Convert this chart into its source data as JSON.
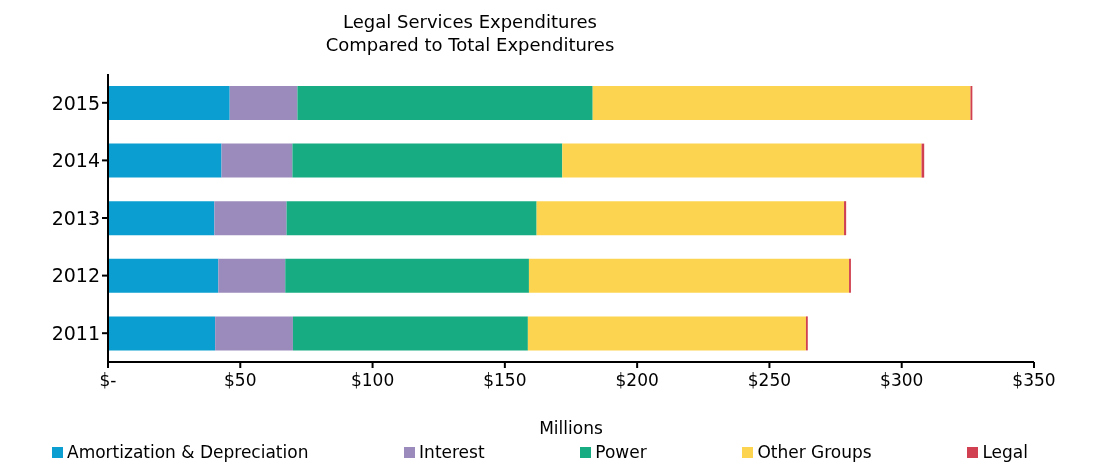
{
  "chart_data": {
    "type": "bar",
    "orientation": "horizontal",
    "stacked": true,
    "title": "Legal Services Expenditures\nCompared to Total Expenditures",
    "xlabel": "Millions",
    "categories": [
      "2015",
      "2014",
      "2013",
      "2012",
      "2011"
    ],
    "series": [
      {
        "name": "Amortization & Depreciation",
        "color": "#0a9fd0",
        "values": [
          46.0,
          42.9,
          40.2,
          41.7,
          40.5
        ]
      },
      {
        "name": "Interest",
        "color": "#9b8bbd",
        "values": [
          25.6,
          26.8,
          27.3,
          25.3,
          29.4
        ]
      },
      {
        "name": "Power",
        "color": "#17ac82",
        "values": [
          111.6,
          102.0,
          94.5,
          92.1,
          88.8
        ]
      },
      {
        "name": "Other Groups",
        "color": "#fdd44f",
        "values": [
          142.8,
          135.8,
          116.2,
          121.0,
          105.1
        ]
      },
      {
        "name": "Legal",
        "color": "#d04050",
        "values": [
          0.7,
          1.0,
          0.8,
          0.7,
          0.7
        ]
      }
    ],
    "xlim": [
      0,
      350
    ],
    "xticks": [
      {
        "value": 0,
        "label": "$-"
      },
      {
        "value": 50,
        "label": "$50"
      },
      {
        "value": 100,
        "label": "$100"
      },
      {
        "value": 150,
        "label": "$150"
      },
      {
        "value": 200,
        "label": "$200"
      },
      {
        "value": 250,
        "label": "$250"
      },
      {
        "value": 300,
        "label": "$300"
      },
      {
        "value": 350,
        "label": "$350"
      }
    ],
    "grid": false,
    "legend": "bottom"
  }
}
